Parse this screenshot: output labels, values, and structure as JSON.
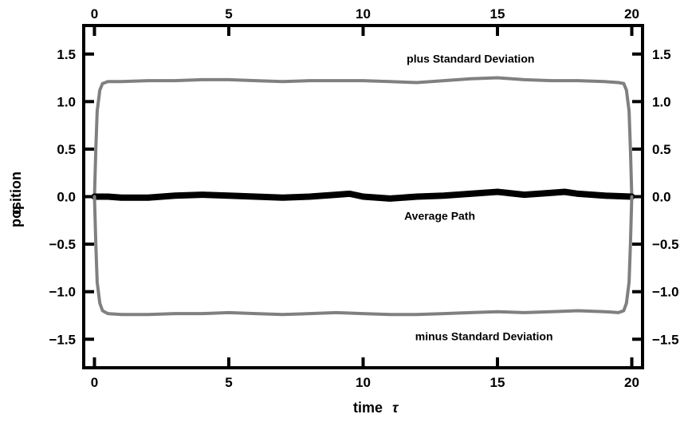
{
  "chart_data": {
    "type": "line",
    "title": "",
    "xlabel": "time",
    "xlabel_symbol": "τ",
    "ylabel": "position",
    "ylabel_symbol": "q",
    "xlim": [
      -0.4,
      20.4
    ],
    "ylim": [
      -1.8,
      1.8
    ],
    "x_ticks": [
      0,
      5,
      10,
      15,
      20
    ],
    "y_ticks": [
      -1.5,
      -1.0,
      -0.5,
      0.0,
      0.5,
      1.0,
      1.5
    ],
    "x_tick_labels": [
      "0",
      "5",
      "10",
      "15",
      "20"
    ],
    "y_tick_labels": [
      "−1.5",
      "−1.0",
      "−0.5",
      "0.0",
      "0.5",
      "1.0",
      "1.5"
    ],
    "grid": false,
    "legend": "none",
    "series": [
      {
        "key": "upper",
        "color": "#808080",
        "x": [
          0,
          0.05,
          0.1,
          0.2,
          0.3,
          0.5,
          1,
          2,
          3,
          4,
          5,
          6,
          7,
          8,
          9,
          10,
          11,
          12,
          13,
          14,
          15,
          16,
          17,
          18,
          19,
          19.5,
          19.7,
          19.8,
          19.9,
          19.95,
          20
        ],
        "y": [
          0,
          0.5,
          0.9,
          1.12,
          1.19,
          1.21,
          1.21,
          1.22,
          1.22,
          1.23,
          1.23,
          1.22,
          1.21,
          1.22,
          1.22,
          1.22,
          1.21,
          1.2,
          1.22,
          1.24,
          1.25,
          1.23,
          1.22,
          1.22,
          1.21,
          1.2,
          1.19,
          1.12,
          0.9,
          0.5,
          0
        ]
      },
      {
        "key": "mean",
        "color": "#000000",
        "x": [
          0,
          0.5,
          1,
          2,
          3,
          4,
          5,
          6,
          7,
          8,
          9,
          9.5,
          10,
          11,
          12,
          13,
          14,
          15,
          16,
          17,
          17.5,
          18,
          19,
          20
        ],
        "y": [
          0.0,
          0.0,
          -0.01,
          -0.01,
          0.01,
          0.02,
          0.01,
          0.0,
          -0.01,
          0.0,
          0.02,
          0.03,
          0.0,
          -0.02,
          0.0,
          0.01,
          0.03,
          0.05,
          0.02,
          0.04,
          0.05,
          0.03,
          0.01,
          0.0
        ]
      },
      {
        "key": "lower",
        "color": "#808080",
        "x": [
          0,
          0.05,
          0.1,
          0.2,
          0.3,
          0.5,
          1,
          2,
          3,
          4,
          5,
          6,
          7,
          8,
          9,
          10,
          11,
          12,
          13,
          14,
          15,
          16,
          17,
          18,
          19,
          19.5,
          19.7,
          19.8,
          19.9,
          19.95,
          20
        ],
        "y": [
          0,
          -0.5,
          -0.9,
          -1.12,
          -1.2,
          -1.23,
          -1.24,
          -1.24,
          -1.23,
          -1.23,
          -1.22,
          -1.23,
          -1.24,
          -1.23,
          -1.22,
          -1.23,
          -1.24,
          -1.24,
          -1.23,
          -1.22,
          -1.21,
          -1.22,
          -1.21,
          -1.2,
          -1.21,
          -1.22,
          -1.2,
          -1.12,
          -0.9,
          -0.5,
          0
        ]
      }
    ],
    "annotations": [
      {
        "text": "plus Standard Deviation",
        "x": 14.0,
        "y": 1.45
      },
      {
        "text": "Average Path",
        "x": 12.85,
        "y": -0.2
      },
      {
        "text": "minus Standard Deviation",
        "x": 14.5,
        "y": -1.47
      }
    ]
  }
}
